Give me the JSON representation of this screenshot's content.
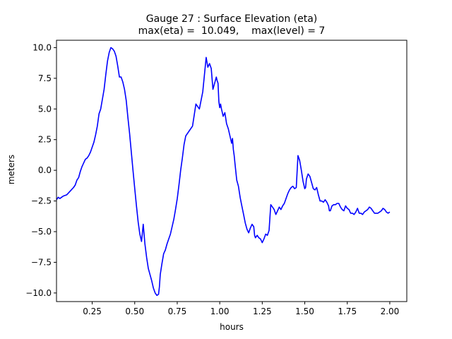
{
  "chart_data": {
    "type": "line",
    "title": "Gauge 27 : Surface Elevation (eta)",
    "subtitle": "max(eta) =  10.049,    max(level) = 7",
    "xlabel": "hours",
    "ylabel": "meters",
    "xlim": [
      0.04,
      2.1
    ],
    "ylim": [
      -10.7,
      10.6
    ],
    "xticks": [
      0.25,
      0.5,
      0.75,
      1.0,
      1.25,
      1.5,
      1.75,
      2.0
    ],
    "xtick_labels": [
      "0.25",
      "0.50",
      "0.75",
      "1.00",
      "1.25",
      "1.50",
      "1.75",
      "2.00"
    ],
    "yticks": [
      -10.0,
      -7.5,
      -5.0,
      -2.5,
      0.0,
      2.5,
      5.0,
      7.5,
      10.0
    ],
    "ytick_labels": [
      "−10.0",
      "−7.5",
      "−5.0",
      "−2.5",
      "0.0",
      "2.5",
      "5.0",
      "7.5",
      "10.0"
    ],
    "grid": false,
    "series": [
      {
        "color": "#0000ff",
        "x": [
          0.04,
          0.05,
          0.06,
          0.07,
          0.08,
          0.1,
          0.12,
          0.14,
          0.15,
          0.16,
          0.17,
          0.18,
          0.19,
          0.2,
          0.21,
          0.22,
          0.23,
          0.24,
          0.25,
          0.26,
          0.27,
          0.28,
          0.29,
          0.3,
          0.31,
          0.32,
          0.33,
          0.34,
          0.35,
          0.36,
          0.37,
          0.38,
          0.39,
          0.4,
          0.41,
          0.42,
          0.43,
          0.44,
          0.45,
          0.46,
          0.47,
          0.48,
          0.49,
          0.5,
          0.51,
          0.52,
          0.53,
          0.54,
          0.55,
          0.56,
          0.57,
          0.58,
          0.59,
          0.6,
          0.61,
          0.62,
          0.63,
          0.64,
          0.645,
          0.65,
          0.66,
          0.67,
          0.68,
          0.69,
          0.7,
          0.71,
          0.72,
          0.73,
          0.74,
          0.75,
          0.76,
          0.77,
          0.78,
          0.79,
          0.8,
          0.82,
          0.84,
          0.86,
          0.88,
          0.9,
          0.92,
          0.93,
          0.94,
          0.95,
          0.96,
          0.97,
          0.98,
          0.985,
          0.99,
          0.995,
          1.0,
          1.005,
          1.01,
          1.02,
          1.03,
          1.04,
          1.05,
          1.06,
          1.07,
          1.075,
          1.08,
          1.085,
          1.09,
          1.1,
          1.11,
          1.12,
          1.13,
          1.14,
          1.15,
          1.16,
          1.17,
          1.18,
          1.19,
          1.2,
          1.205,
          1.21,
          1.22,
          1.23,
          1.24,
          1.25,
          1.26,
          1.27,
          1.28,
          1.29,
          1.3,
          1.31,
          1.32,
          1.33,
          1.34,
          1.35,
          1.36,
          1.37,
          1.38,
          1.39,
          1.4,
          1.41,
          1.42,
          1.43,
          1.44,
          1.45,
          1.46,
          1.47,
          1.48,
          1.49,
          1.5,
          1.505,
          1.51,
          1.52,
          1.53,
          1.54,
          1.55,
          1.56,
          1.57,
          1.58,
          1.59,
          1.6,
          1.61,
          1.62,
          1.63,
          1.64,
          1.645,
          1.65,
          1.66,
          1.67,
          1.68,
          1.69,
          1.7,
          1.71,
          1.72,
          1.73,
          1.74,
          1.75,
          1.76,
          1.77,
          1.78,
          1.79,
          1.8,
          1.81,
          1.82,
          1.83,
          1.84,
          1.85,
          1.86,
          1.87,
          1.88,
          1.89,
          1.9,
          1.91,
          1.92,
          1.93,
          1.94,
          1.95,
          1.96,
          1.97,
          1.98,
          1.99,
          2.0
        ],
        "y": [
          -2.4,
          -2.2,
          -2.3,
          -2.2,
          -2.1,
          -2.0,
          -1.7,
          -1.4,
          -1.2,
          -0.8,
          -0.6,
          -0.1,
          0.3,
          0.6,
          0.9,
          1.0,
          1.2,
          1.5,
          1.9,
          2.3,
          2.9,
          3.6,
          4.6,
          5.0,
          5.8,
          6.6,
          7.8,
          8.9,
          9.6,
          10.0,
          9.9,
          9.7,
          9.3,
          8.5,
          7.6,
          7.6,
          7.2,
          6.6,
          5.7,
          4.3,
          3.0,
          1.5,
          0.0,
          -1.5,
          -2.9,
          -4.2,
          -5.2,
          -5.8,
          -4.4,
          -6.0,
          -7.1,
          -8.0,
          -8.5,
          -9.0,
          -9.6,
          -10.0,
          -10.2,
          -10.1,
          -9.5,
          -8.5,
          -7.6,
          -6.8,
          -6.5,
          -6.0,
          -5.6,
          -5.2,
          -4.6,
          -4.0,
          -3.2,
          -2.3,
          -1.2,
          0.0,
          1.0,
          2.1,
          2.8,
          3.2,
          3.6,
          5.4,
          5.0,
          6.4,
          9.2,
          8.4,
          8.7,
          8.3,
          6.6,
          7.1,
          7.6,
          7.3,
          7.1,
          5.6,
          5.1,
          5.4,
          5.0,
          4.4,
          4.7,
          3.8,
          3.4,
          2.8,
          2.2,
          2.6,
          1.7,
          1.2,
          0.5,
          -0.8,
          -1.3,
          -2.2,
          -2.9,
          -3.6,
          -4.3,
          -4.8,
          -5.1,
          -4.7,
          -4.4,
          -4.6,
          -5.3,
          -5.5,
          -5.3,
          -5.5,
          -5.6,
          -5.9,
          -5.6,
          -5.2,
          -5.3,
          -4.9,
          -2.8,
          -3.0,
          -3.2,
          -3.6,
          -3.3,
          -3.0,
          -3.2,
          -2.9,
          -2.7,
          -2.3,
          -1.9,
          -1.6,
          -1.4,
          -1.3,
          -1.5,
          -1.4,
          1.2,
          0.8,
          0.0,
          -0.9,
          -1.5,
          -1.4,
          -0.7,
          -0.3,
          -0.5,
          -1.0,
          -1.5,
          -1.6,
          -1.4,
          -2.0,
          -2.5,
          -2.5,
          -2.6,
          -2.4,
          -2.6,
          -2.9,
          -3.3,
          -3.3,
          -2.9,
          -2.8,
          -2.8,
          -2.7,
          -2.7,
          -3.0,
          -3.2,
          -3.3,
          -2.9,
          -3.1,
          -3.2,
          -3.5,
          -3.5,
          -3.6,
          -3.4,
          -3.1,
          -3.5,
          -3.5,
          -3.6,
          -3.4,
          -3.3,
          -3.2,
          -3.0,
          -3.1,
          -3.3,
          -3.5,
          -3.5,
          -3.5,
          -3.4,
          -3.3,
          -3.1,
          -3.2,
          -3.4,
          -3.5,
          -3.4
        ]
      }
    ]
  }
}
